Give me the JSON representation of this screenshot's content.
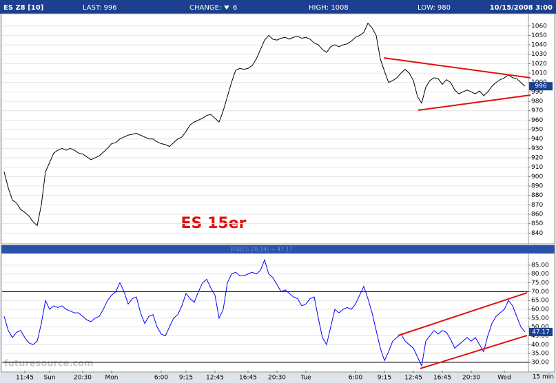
{
  "header": {
    "symbol": "ES Z8 [10]",
    "last": "LAST: 996",
    "change_label": "CHANGE:",
    "change": "6",
    "high": "HIGH: 1008",
    "low": "LOW: 980",
    "datetime": "10/15/2008 3:00"
  },
  "watermark": "futuresource.com",
  "chart_data": [
    {
      "type": "line",
      "annotation": "ES 15er",
      "color": "#000000",
      "grid": true,
      "ylim": [
        830,
        1073
      ],
      "yticks": [
        840,
        850,
        860,
        870,
        880,
        890,
        900,
        910,
        920,
        930,
        940,
        950,
        960,
        970,
        980,
        990,
        1000,
        1010,
        1020,
        1030,
        1040,
        1050,
        1060
      ],
      "values": [
        905,
        888,
        875,
        872,
        865,
        862,
        858,
        852,
        848,
        870,
        905,
        915,
        925,
        928,
        930,
        928,
        930,
        928,
        925,
        924,
        921,
        918,
        920,
        922,
        926,
        930,
        935,
        936,
        940,
        942,
        944,
        945,
        946,
        944,
        942,
        940,
        940,
        937,
        935,
        934,
        932,
        936,
        940,
        942,
        948,
        955,
        958,
        960,
        962,
        965,
        966,
        962,
        958,
        970,
        985,
        1000,
        1013,
        1015,
        1014,
        1015,
        1018,
        1025,
        1035,
        1045,
        1050,
        1046,
        1045,
        1047,
        1048,
        1046,
        1048,
        1049,
        1047,
        1048,
        1046,
        1042,
        1040,
        1035,
        1032,
        1038,
        1040,
        1038,
        1040,
        1041,
        1044,
        1048,
        1050,
        1053,
        1063,
        1058,
        1050,
        1025,
        1012,
        1000,
        1002,
        1005,
        1010,
        1014,
        1010,
        1002,
        985,
        978,
        995,
        1002,
        1005,
        1004,
        998,
        1003,
        1000,
        992,
        988,
        990,
        992,
        990,
        988,
        991,
        986,
        990,
        996,
        1000,
        1003,
        1005,
        1008,
        1005,
        1004,
        1000,
        996
      ]
    },
    {
      "type": "line",
      "title": "RSI(ES Z8,14) = 47.17",
      "color": "#0000ff",
      "grid": true,
      "hlines": [
        70,
        30
      ],
      "x_unit": "15 min",
      "ylim": [
        25.3,
        91.6
      ],
      "yticks": [
        {
          "value": 30,
          "label": "30.00"
        },
        {
          "value": 35,
          "label": "35.00"
        },
        {
          "value": 40,
          "label": "40.00"
        },
        {
          "value": 45,
          "label": "45.00"
        },
        {
          "value": 50,
          "label": "50.00"
        },
        {
          "value": 55,
          "label": "55.00"
        },
        {
          "value": 60,
          "label": "60.00"
        },
        {
          "value": 65,
          "label": "65.00"
        },
        {
          "value": 70,
          "label": "70.00"
        },
        {
          "value": 75,
          "label": "75.00"
        },
        {
          "value": 80,
          "label": "80.00"
        },
        {
          "value": 85,
          "label": "85.00"
        }
      ],
      "categories": [
        null,
        null,
        null,
        null,
        null,
        "11:45",
        null,
        null,
        null,
        null,
        null,
        "Sun",
        null,
        null,
        null,
        null,
        null,
        null,
        null,
        "20:30",
        null,
        null,
        null,
        null,
        null,
        null,
        "Mon",
        null,
        null,
        null,
        null,
        null,
        null,
        null,
        null,
        null,
        null,
        null,
        "6:00",
        null,
        null,
        null,
        null,
        null,
        "9:15",
        null,
        null,
        null,
        null,
        null,
        null,
        "12:45",
        null,
        null,
        null,
        null,
        null,
        null,
        null,
        "16:45",
        null,
        null,
        null,
        null,
        null,
        null,
        "20:30",
        null,
        null,
        null,
        null,
        null,
        null,
        "Tue",
        null,
        null,
        null,
        null,
        null,
        null,
        null,
        null,
        null,
        null,
        null,
        "6:00",
        null,
        null,
        null,
        null,
        null,
        null,
        "9:15",
        null,
        null,
        null,
        null,
        null,
        null,
        "12:45",
        null,
        null,
        null,
        null,
        null,
        null,
        "16:45",
        null,
        null,
        null,
        null,
        null,
        null,
        "20:30",
        null,
        null,
        null,
        null,
        null,
        null,
        null,
        "Wed",
        null,
        null,
        null,
        null,
        null
      ],
      "values": [
        56,
        48,
        44,
        47,
        48,
        44,
        41,
        40,
        42,
        52,
        65,
        60,
        62,
        61,
        62,
        60,
        59,
        58,
        58,
        56,
        54,
        53,
        55,
        56,
        60,
        65,
        68,
        70,
        75,
        70,
        63,
        66,
        67,
        58,
        52,
        56,
        57,
        50,
        46,
        45,
        50,
        55,
        57,
        62,
        69,
        66,
        64,
        70,
        75,
        77,
        72,
        68,
        55,
        60,
        75,
        80,
        81,
        79,
        79,
        80,
        81,
        80,
        82,
        88,
        80,
        78,
        74,
        70,
        71,
        69,
        67,
        66,
        62,
        63,
        66,
        67,
        55,
        44,
        40,
        50,
        60,
        58,
        60,
        61,
        60,
        63,
        68,
        73,
        66,
        58,
        48,
        38,
        31,
        36,
        42,
        44,
        46,
        42,
        40,
        38,
        33,
        28,
        42,
        45,
        48,
        46,
        48,
        47,
        43,
        38,
        40,
        42,
        44,
        42,
        44,
        40,
        36,
        45,
        52,
        56,
        58,
        60,
        65,
        62,
        56,
        50,
        47.17
      ]
    }
  ]
}
